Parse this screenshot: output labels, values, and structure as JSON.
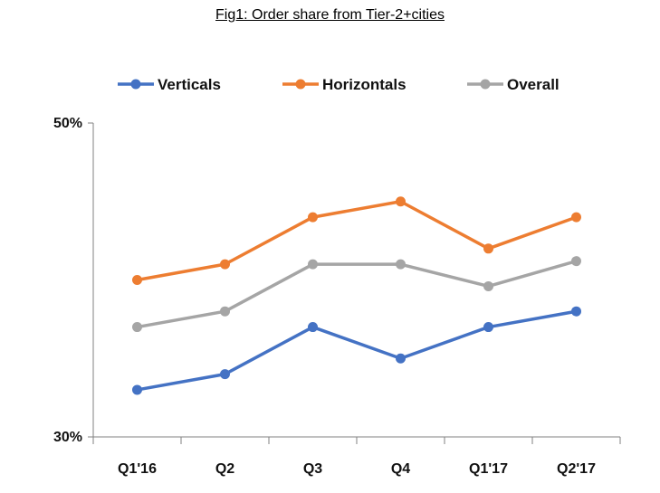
{
  "chart_data": {
    "type": "line",
    "title": "Fig1: Order share from Tier-2+cities",
    "categories": [
      "Q1'16",
      "Q2",
      "Q3",
      "Q4",
      "Q1'17",
      "Q2'17"
    ],
    "ylim": [
      30,
      50
    ],
    "ytick_labels": [
      "50%",
      "30%"
    ],
    "ytick_values": [
      50,
      30
    ],
    "xlabel": "",
    "ylabel": "",
    "grid": false,
    "legend_position": "top",
    "series": [
      {
        "name": "Verticals",
        "color": "#4472c4",
        "values": [
          33.0,
          34.0,
          37.0,
          35.0,
          37.0,
          38.0
        ]
      },
      {
        "name": "Horizontals",
        "color": "#ed7d31",
        "values": [
          40.0,
          41.0,
          44.0,
          45.0,
          42.0,
          44.0
        ]
      },
      {
        "name": "Overall",
        "color": "#a5a5a5",
        "values": [
          37.0,
          38.0,
          41.0,
          41.0,
          39.6,
          41.2
        ]
      }
    ]
  }
}
